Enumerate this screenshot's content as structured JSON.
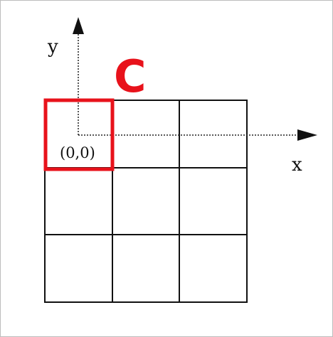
{
  "diagram": {
    "corner_letter": "C",
    "origin_label": "(0,0)",
    "x_axis_label": "x",
    "y_axis_label": "y",
    "grid": {
      "rows": 3,
      "cols": 3
    },
    "highlight": {
      "row": 0,
      "col": 0
    }
  },
  "colors": {
    "highlight": "#e8121b",
    "grid": "#111111",
    "axis": "#222222",
    "text": "#111111",
    "frame": "#bdbdbd"
  }
}
